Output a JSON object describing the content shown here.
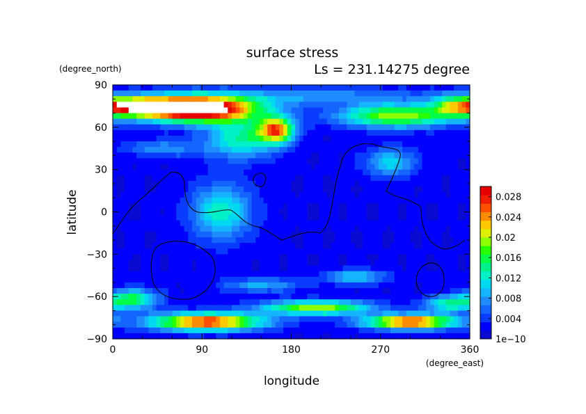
{
  "chart_data": {
    "type": "heatmap",
    "title": "surface stress",
    "subtitle": "Ls = 231.14275 degree",
    "xlabel": "longitude",
    "ylabel": "latitude",
    "x_units": "(degree_east)",
    "y_units": "(degree_north)",
    "xlim": [
      0,
      360
    ],
    "ylim": [
      -90,
      90
    ],
    "x_ticks": [
      "0",
      "90",
      "180",
      "270",
      "360"
    ],
    "y_ticks": [
      "90",
      "60",
      "30",
      "0",
      "−30",
      "−60",
      "−90"
    ],
    "x_tick_values": [
      0,
      90,
      180,
      270,
      360
    ],
    "y_tick_values": [
      90,
      60,
      30,
      0,
      -30,
      -60,
      -90
    ],
    "colorbar": {
      "labels": [
        "1e−10",
        "0.004",
        "0.008",
        "0.012",
        "0.016",
        "0.02",
        "0.024",
        "0.028"
      ],
      "label_values": [
        0,
        0.004,
        0.008,
        0.012,
        0.016,
        0.02,
        0.024,
        0.028
      ],
      "min": 0,
      "max": 0.03,
      "colors": [
        "#0a0ad2",
        "#0000ff",
        "#0a3cff",
        "#1464ff",
        "#1e8cff",
        "#14b4ff",
        "#00d7f0",
        "#00f0c8",
        "#00f08c",
        "#00ff46",
        "#28ff00",
        "#8cff00",
        "#dcf000",
        "#ffc800",
        "#ff8c00",
        "#ff5000",
        "#f01e00",
        "#e60000"
      ]
    },
    "grid": false,
    "legend": "right",
    "blobs": [
      {
        "lon": 85,
        "lat": 73,
        "rlon": 60,
        "rlat": 9,
        "value": 0.036
      },
      {
        "lon": 30,
        "lat": 75,
        "rlon": 35,
        "rlat": 6,
        "value": 0.018
      },
      {
        "lon": 165,
        "lat": 58,
        "rlon": 18,
        "rlat": 9,
        "value": 0.022
      },
      {
        "lon": 130,
        "lat": 52,
        "rlon": 35,
        "rlat": 14,
        "value": 0.012
      },
      {
        "lon": 285,
        "lat": 68,
        "rlon": 55,
        "rlat": 8,
        "value": 0.018
      },
      {
        "lon": 350,
        "lat": 75,
        "rlon": 30,
        "rlat": 8,
        "value": 0.014
      },
      {
        "lon": 205,
        "lat": 82,
        "rlon": 110,
        "rlat": 6,
        "value": 0.006
      },
      {
        "lon": 110,
        "lat": 0,
        "rlon": 30,
        "rlat": 20,
        "value": 0.011
      },
      {
        "lon": 280,
        "lat": 35,
        "rlon": 25,
        "rlat": 10,
        "value": 0.009
      },
      {
        "lon": 50,
        "lat": 45,
        "rlon": 40,
        "rlat": 6,
        "value": 0.006
      },
      {
        "lon": 95,
        "lat": -78,
        "rlon": 55,
        "rlat": 6,
        "value": 0.026
      },
      {
        "lon": 300,
        "lat": -78,
        "rlon": 45,
        "rlat": 5,
        "value": 0.026
      },
      {
        "lon": 205,
        "lat": -68,
        "rlon": 55,
        "rlat": 5,
        "value": 0.018
      },
      {
        "lon": 20,
        "lat": -62,
        "rlon": 25,
        "rlat": 7,
        "value": 0.014
      },
      {
        "lon": 340,
        "lat": -65,
        "rlon": 25,
        "rlat": 6,
        "value": 0.012
      },
      {
        "lon": 245,
        "lat": -46,
        "rlon": 30,
        "rlat": 5,
        "value": 0.009
      },
      {
        "lon": 150,
        "lat": -52,
        "rlon": 40,
        "rlat": 5,
        "value": 0.007
      }
    ]
  }
}
